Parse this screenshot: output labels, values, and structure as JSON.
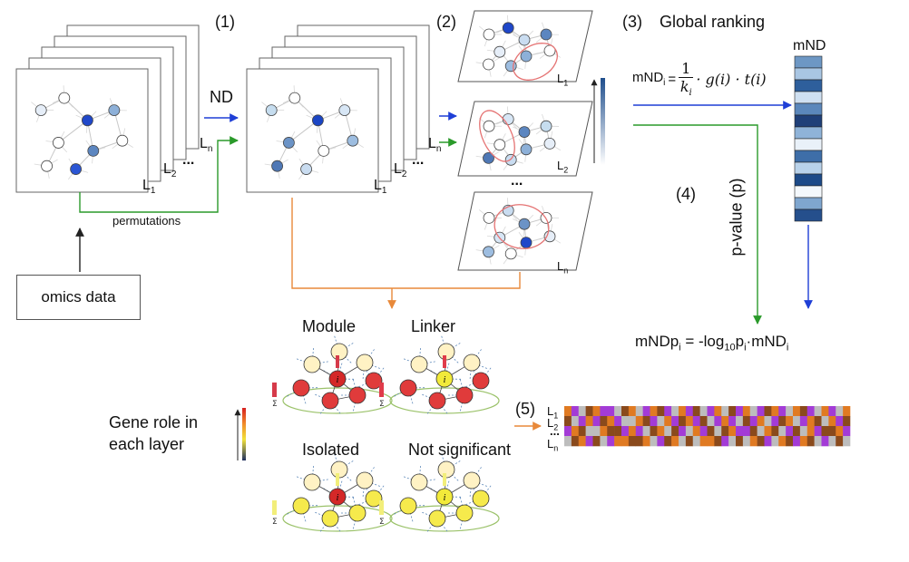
{
  "steps": {
    "s1": "(1)",
    "s2": "(2)",
    "s3": "(3)",
    "s4": "(4)",
    "s5": "(5)"
  },
  "labels": {
    "global_ranking": "Global ranking",
    "mnd": "mND",
    "nd": "ND",
    "permutations": "permutations",
    "omics_data": "omics data",
    "pvalue": "p-value (p)",
    "gene_role_line1": "Gene role in",
    "gene_role_line2": "each layer",
    "ellipsis": "..."
  },
  "layers": {
    "L": "L",
    "n": "n",
    "one": "1",
    "two": "2"
  },
  "formulas": {
    "mnd_lhs": "mND",
    "mnd_sub": "i",
    "mnd_eq": "=",
    "mnd_num": "1",
    "mnd_den": "k",
    "mnd_den_sub": "i",
    "mnd_rhs": "· g(i) · t(i)",
    "mndp": "mNDp",
    "mndp_sub": "i",
    "mndp_mid": " = -log",
    "mndp_log_sub": "10",
    "mndp_p": "p",
    "mndp_p_sub": "i",
    "mndp_tail": "·mND",
    "mndp_tail_sub": "i"
  },
  "roles": {
    "module": "Module",
    "linker": "Linker",
    "isolated": "Isolated",
    "not_significant": "Not significant"
  },
  "node_marks": {
    "i": "i",
    "sigma": "Σ"
  },
  "colors": {
    "blue_arrow": "#1f3fd6",
    "green_arrow": "#2a9a2a",
    "orange_arrow": "#e8893a",
    "module_outline": "#e57373",
    "heat_1": "#e07a22",
    "heat_2": "#a33bd6",
    "heat_3": "#bdbdbd",
    "heat_4": "#8a4a1c"
  }
}
